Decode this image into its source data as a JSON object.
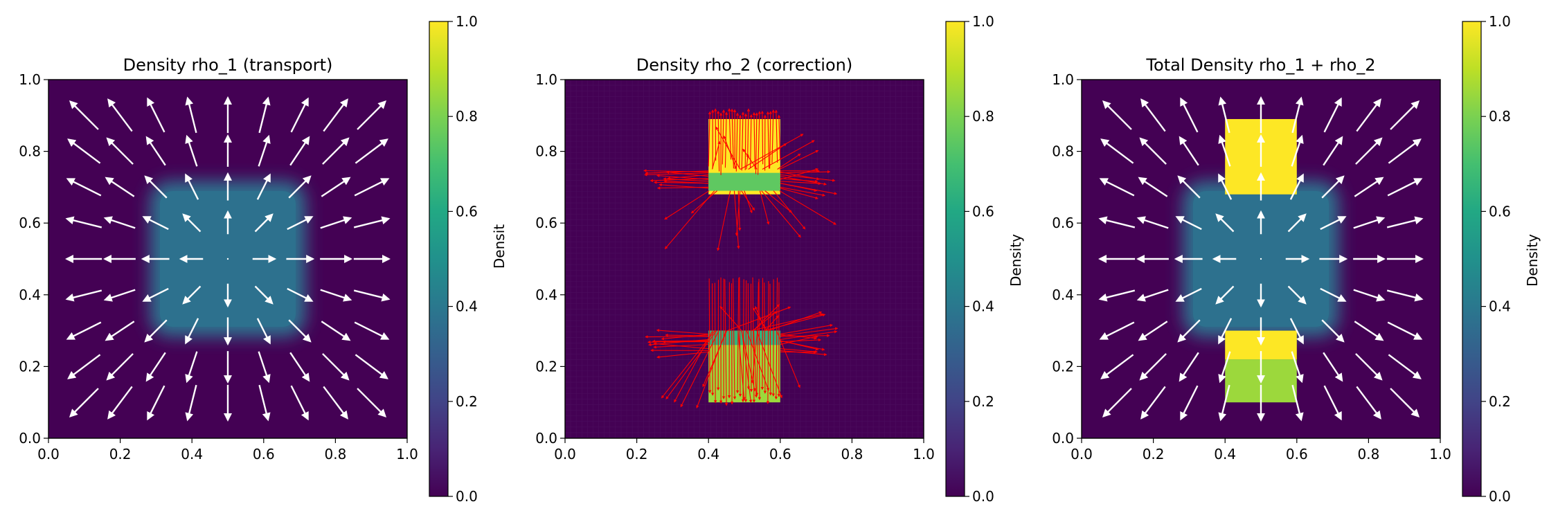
{
  "colormap": "viridis",
  "colors": {
    "low": "#440154",
    "mid": "#21918c",
    "high": "#fde725",
    "quiver_white": "#ffffff",
    "quiver_red": "#ff0000"
  },
  "chart_data": [
    {
      "type": "heatmap",
      "title": "Density rho_1 (transport)",
      "xlabel": "",
      "ylabel": "",
      "xlim": [
        0,
        1
      ],
      "ylim": [
        0,
        1
      ],
      "xticks": [
        "0.0",
        "0.2",
        "0.4",
        "0.6",
        "0.8",
        "1.0"
      ],
      "yticks": [
        "0.0",
        "0.2",
        "0.4",
        "0.6",
        "0.8",
        "1.0"
      ],
      "colorbar": {
        "label": "Densit",
        "range": [
          0,
          1
        ],
        "ticks": [
          "0.0",
          "0.2",
          "0.4",
          "0.6",
          "0.8",
          "1.0"
        ]
      },
      "field": {
        "background_value": 0.0,
        "regions": [
          {
            "x": [
              0.3,
              0.7
            ],
            "y": [
              0.3,
              0.7
            ],
            "value": 0.37,
            "edge_softness": 0.06
          }
        ]
      },
      "quiver": {
        "color": "white",
        "pattern": "radial outward from (0.5, 0.5)",
        "grid_x": [
          0.1,
          0.2,
          0.3,
          0.4,
          0.5,
          0.6,
          0.7,
          0.8,
          0.9
        ],
        "grid_y": [
          0.1,
          0.2,
          0.3,
          0.4,
          0.5,
          0.6,
          0.7,
          0.8,
          0.9
        ]
      }
    },
    {
      "type": "heatmap",
      "title": "Density rho_2 (correction)",
      "xlabel": "",
      "ylabel": "",
      "xlim": [
        0,
        1
      ],
      "ylim": [
        0,
        1
      ],
      "xticks": [
        "0.0",
        "0.2",
        "0.4",
        "0.6",
        "0.8",
        "1.0"
      ],
      "yticks": [
        "0.0",
        "0.2",
        "0.4",
        "0.6",
        "0.8",
        "1.0"
      ],
      "colorbar": {
        "label": "Density",
        "range": [
          0,
          1
        ],
        "ticks": [
          "0.0",
          "0.2",
          "0.4",
          "0.6",
          "0.8",
          "1.0"
        ]
      },
      "field": {
        "background_value": 0.0,
        "regions": [
          {
            "x": [
              0.4,
              0.6
            ],
            "y": [
              0.68,
              0.89
            ],
            "value": 1.0
          },
          {
            "x": [
              0.4,
              0.6
            ],
            "y": [
              0.69,
              0.74
            ],
            "value": 0.75
          },
          {
            "x": [
              0.4,
              0.6
            ],
            "y": [
              0.1,
              0.3
            ],
            "value": 0.85
          },
          {
            "x": [
              0.4,
              0.6
            ],
            "y": [
              0.26,
              0.3
            ],
            "value": 0.65
          }
        ]
      },
      "quiver": {
        "color": "red",
        "pattern": "dense red arrows around the two upper and lower blocks",
        "blocks": [
          {
            "x": [
              0.4,
              0.6
            ],
            "y": [
              0.68,
              0.92
            ]
          },
          {
            "x": [
              0.4,
              0.6
            ],
            "y": [
              0.07,
              0.45
            ]
          }
        ]
      }
    },
    {
      "type": "heatmap",
      "title": "Total Density rho_1 + rho_2",
      "xlabel": "",
      "ylabel": "",
      "xlim": [
        0,
        1
      ],
      "ylim": [
        0,
        1
      ],
      "xticks": [
        "0.0",
        "0.2",
        "0.4",
        "0.6",
        "0.8",
        "1.0"
      ],
      "yticks": [
        "0.0",
        "0.2",
        "0.4",
        "0.6",
        "0.8",
        "1.0"
      ],
      "colorbar": {
        "label": "Density",
        "range": [
          0,
          1
        ],
        "ticks": [
          "0.0",
          "0.2",
          "0.4",
          "0.6",
          "0.8",
          "1.0"
        ]
      },
      "field": {
        "background_value": 0.0,
        "regions": [
          {
            "x": [
              0.3,
              0.7
            ],
            "y": [
              0.3,
              0.7
            ],
            "value": 0.37,
            "edge_softness": 0.06
          },
          {
            "x": [
              0.4,
              0.6
            ],
            "y": [
              0.68,
              0.89
            ],
            "value": 1.0
          },
          {
            "x": [
              0.4,
              0.6
            ],
            "y": [
              0.22,
              0.3
            ],
            "value": 1.0
          },
          {
            "x": [
              0.4,
              0.6
            ],
            "y": [
              0.1,
              0.22
            ],
            "value": 0.85
          }
        ]
      },
      "quiver": {
        "color": "white",
        "pattern": "radial outward from (0.5, 0.5)",
        "grid_x": [
          0.1,
          0.2,
          0.3,
          0.4,
          0.5,
          0.6,
          0.7,
          0.8,
          0.9
        ],
        "grid_y": [
          0.1,
          0.2,
          0.3,
          0.4,
          0.5,
          0.6,
          0.7,
          0.8,
          0.9
        ]
      }
    }
  ]
}
